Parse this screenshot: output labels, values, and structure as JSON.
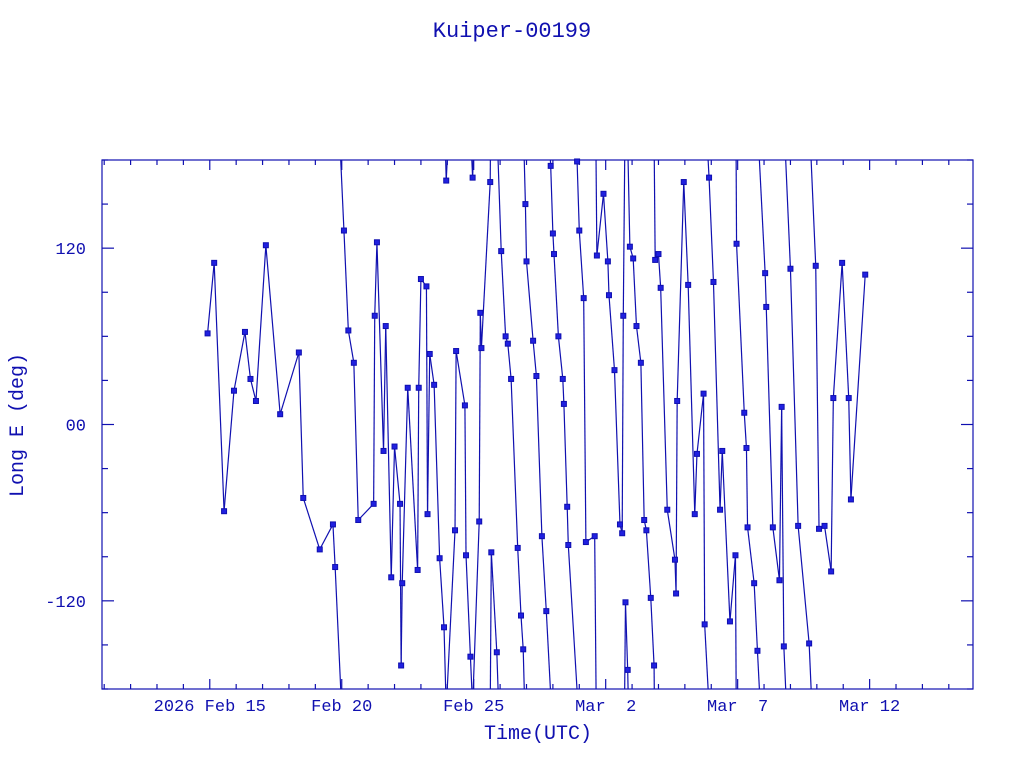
{
  "chart_data": {
    "type": "line",
    "title": "Kuiper-00199",
    "xlabel": "Time(UTC)",
    "ylabel": "Long E (deg)",
    "xlim": [
      "2026-02-10T22:00",
      "2026-03-15T22:00"
    ],
    "ylim": [
      -180,
      180
    ],
    "grid": false,
    "legend": "none",
    "color": "#1010b0",
    "marker": "square",
    "y_wraps": true,
    "x_ticks": [
      {
        "date": "2026-02-15",
        "label": "2026 Feb 15"
      },
      {
        "date": "2026-02-20",
        "label": "Feb 20"
      },
      {
        "date": "2026-02-25",
        "label": "Feb 25"
      },
      {
        "date": "2026-03-02",
        "label": "Mar  2"
      },
      {
        "date": "2026-03-07",
        "label": "Mar  7"
      },
      {
        "date": "2026-03-12",
        "label": "Mar 12"
      }
    ],
    "y_ticks": [
      {
        "value": 120,
        "label": "120"
      },
      {
        "value": 0,
        "label": "00"
      },
      {
        "value": -120,
        "label": "-120"
      }
    ],
    "x": [
      "2026-02-14T22:00",
      "2026-02-15T04:00",
      "2026-02-15T13:00",
      "2026-02-15T22:00",
      "2026-02-16T08:00",
      "2026-02-16T13:00",
      "2026-02-16T18:00",
      "2026-02-17T03:00",
      "2026-02-17T16:00",
      "2026-02-18T09:00",
      "2026-02-18T13:00",
      "2026-02-19T04:00",
      "2026-02-19T16:00",
      "2026-02-19T18:00",
      "2026-02-20T02:00",
      "2026-02-20T06:00",
      "2026-02-20T11:00",
      "2026-02-20T15:00",
      "2026-02-21T05:00",
      "2026-02-21T06:00",
      "2026-02-21T08:00",
      "2026-02-21T14:00",
      "2026-02-21T16:00",
      "2026-02-21T21:00",
      "2026-02-22T00:00",
      "2026-02-22T05:00",
      "2026-02-22T06:00",
      "2026-02-22T07:00",
      "2026-02-22T12:00",
      "2026-02-22T21:00",
      "2026-02-22T22:00",
      "2026-02-23T00:00",
      "2026-02-23T05:00",
      "2026-02-23T06:00",
      "2026-02-23T08:00",
      "2026-02-23T12:00",
      "2026-02-23T17:00",
      "2026-02-23T21:00",
      "2026-02-23T23:00",
      "2026-02-24T07:00",
      "2026-02-24T08:00",
      "2026-02-24T16:00",
      "2026-02-24T17:00",
      "2026-02-24T21:00",
      "2026-02-24T23:00",
      "2026-02-25T05:00",
      "2026-02-25T06:00",
      "2026-02-25T07:00",
      "2026-02-25T15:00",
      "2026-02-25T16:00",
      "2026-02-25T21:00",
      "2026-02-26T01:00",
      "2026-02-26T05:00",
      "2026-02-26T07:00",
      "2026-02-26T10:00",
      "2026-02-26T16:00",
      "2026-02-26T19:00",
      "2026-02-26T21:00",
      "2026-02-26T23:00",
      "2026-02-27T00:00",
      "2026-02-27T06:00",
      "2026-02-27T09:00",
      "2026-02-27T14:00",
      "2026-02-27T18:00",
      "2026-02-27T22:00",
      "2026-02-28T00:00",
      "2026-02-28T01:00",
      "2026-02-28T05:00",
      "2026-02-28T09:00",
      "2026-02-28T10:00",
      "2026-02-28T13:00",
      "2026-02-28T14:00",
      "2026-02-28T22:00",
      "2026-03-01T00:00",
      "2026-03-01T04:00",
      "2026-03-01T06:00",
      "2026-03-01T14:00",
      "2026-03-01T16:00",
      "2026-03-01T22:00",
      "2026-03-02T02:00",
      "2026-03-02T03:00",
      "2026-03-02T08:00",
      "2026-03-02T13:00",
      "2026-03-02T15:00",
      "2026-03-02T16:00",
      "2026-03-02T18:00",
      "2026-03-02T20:00",
      "2026-03-02T22:00",
      "2026-03-03T01:00",
      "2026-03-03T04:00",
      "2026-03-03T08:00",
      "2026-03-03T11:00",
      "2026-03-03T13:00",
      "2026-03-03T17:00",
      "2026-03-03T20:00",
      "2026-03-03T21:00",
      "2026-03-04T00:00",
      "2026-03-04T02:00",
      "2026-03-04T08:00",
      "2026-03-04T15:00",
      "2026-03-04T16:00",
      "2026-03-04T17:00",
      "2026-03-04T23:00",
      "2026-03-05T03:00",
      "2026-03-05T09:00",
      "2026-03-05T11:00",
      "2026-03-05T17:00",
      "2026-03-05T18:00",
      "2026-03-05T22:00",
      "2026-03-06T02:00",
      "2026-03-06T08:00",
      "2026-03-06T10:00",
      "2026-03-06T17:00",
      "2026-03-06T22:00",
      "2026-03-06T23:00",
      "2026-03-07T06:00",
      "2026-03-07T08:00",
      "2026-03-07T09:00",
      "2026-03-07T15:00",
      "2026-03-07T18:00",
      "2026-03-08T01:00",
      "2026-03-08T02:00",
      "2026-03-08T08:00",
      "2026-03-08T14:00",
      "2026-03-08T16:00",
      "2026-03-08T18:00",
      "2026-03-09T00:00",
      "2026-03-09T07:00",
      "2026-03-09T17:00",
      "2026-03-09T23:00",
      "2026-03-10T02:00",
      "2026-03-10T07:00",
      "2026-03-10T13:00",
      "2026-03-10T15:00",
      "2026-03-10T23:00",
      "2026-03-11T05:00",
      "2026-03-11T07:00",
      "2026-03-11T20:00"
    ],
    "y": [
      62,
      110,
      -59,
      23,
      63,
      31,
      16,
      122,
      7,
      49,
      -50,
      -85,
      -68,
      -97,
      132,
      64,
      42,
      -65,
      -54,
      74,
      124,
      -18,
      67,
      -104,
      -15,
      -54,
      -164,
      -108,
      25,
      -99,
      25,
      99,
      94,
      -61,
      48,
      27,
      -91,
      -138,
      166,
      -72,
      50,
      13,
      -89,
      -158,
      168,
      -66,
      76,
      52,
      165,
      -87,
      -155,
      118,
      60,
      55,
      31,
      -84,
      -130,
      -153,
      150,
      111,
      57,
      33,
      -76,
      -127,
      176,
      130,
      116,
      60,
      31,
      14,
      -56,
      -82,
      179,
      132,
      86,
      -80,
      -76,
      115,
      157,
      111,
      88,
      37,
      -68,
      -74,
      74,
      -121,
      -167,
      121,
      113,
      67,
      42,
      -65,
      -72,
      -118,
      -164,
      112,
      116,
      93,
      -58,
      -92,
      -115,
      16,
      165,
      95,
      -61,
      -20,
      21,
      -136,
      168,
      97,
      -58,
      -18,
      -134,
      -89,
      123,
      8,
      -16,
      -70,
      -108,
      -154,
      103,
      80,
      -70,
      -106,
      12,
      -151,
      106,
      -69,
      -149,
      108,
      -71,
      -69,
      -100,
      18,
      110,
      18,
      -51,
      102
    ]
  }
}
